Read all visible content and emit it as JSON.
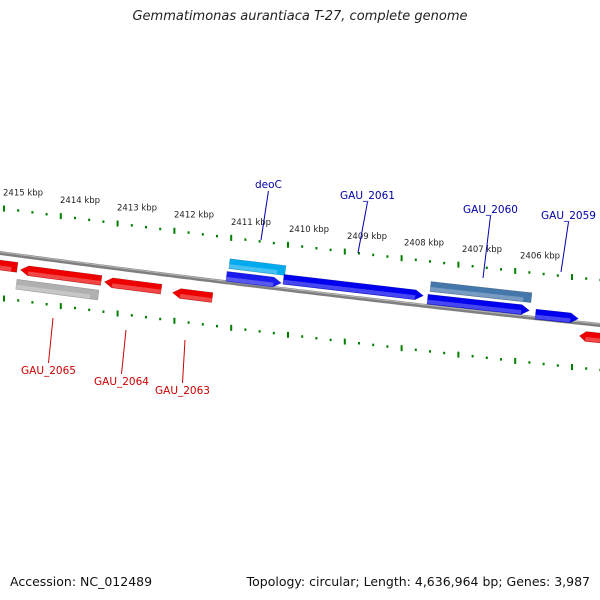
{
  "title": "Gemmatimonas aurantiaca T-27, complete genome",
  "footer": {
    "accession": "Accession: NC_012489",
    "topology": "Topology: circular; Length: 4,636,964 bp; Genes: 3,987"
  },
  "colors": {
    "forward_gene": "#0000ee",
    "reverse_gene": "#ee0000",
    "forward_label": "#0000aa",
    "reverse_label": "#cc0000",
    "tick": "#008000",
    "backbone": "#7f7f7f"
  },
  "kbp_labels": [
    "2415 kbp",
    "2414 kbp",
    "2413 kbp",
    "2412 kbp",
    "2411 kbp",
    "2410 kbp",
    "2409 kbp",
    "2408 kbp",
    "2407 kbp",
    "2406 kbp"
  ],
  "genes": [
    {
      "id": "deoC",
      "strand": "forward",
      "color": "#00aaee",
      "label": "deoC"
    },
    {
      "id": "GAU_2061",
      "strand": "forward",
      "color": "#0000ee",
      "label": "GAU_2061"
    },
    {
      "id": "GAU_2060",
      "strand": "forward",
      "color": "#4477aa",
      "label": "GAU_2060"
    },
    {
      "id": "GAU_2059",
      "strand": "forward",
      "color": "#0000ee",
      "label": "GAU_2059"
    },
    {
      "id": "GAU_2065",
      "strand": "reverse",
      "color": "#aaaaaa",
      "label": "GAU_2065"
    },
    {
      "id": "GAU_2064",
      "strand": "reverse",
      "color": "#ee0000",
      "label": "GAU_2064"
    },
    {
      "id": "GAU_2063",
      "strand": "reverse",
      "color": "#ee0000",
      "label": "GAU_2063"
    }
  ]
}
